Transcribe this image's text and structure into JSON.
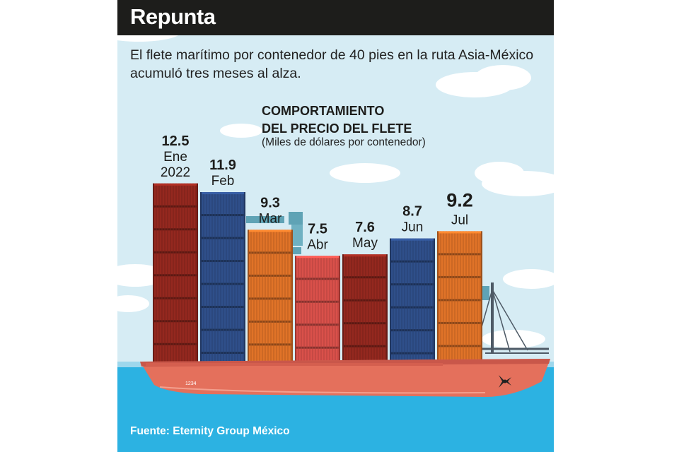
{
  "header": {
    "title": "Repunta"
  },
  "subtitle": "El flete marítimo por contenedor de 40 pies en la ruta Asia-México acumuló tres meses al alza.",
  "source": "Fuente: Eternity Group México",
  "ship": {
    "hull_number": "1234"
  },
  "colors": {
    "sky": "#d6ecf4",
    "sea": "#2cb2e2",
    "hull": "#e4705c",
    "header": "#1d1d1b"
  },
  "chart_data": {
    "type": "bar",
    "title": "COMPORTAMIENTO\nDEL PRECIO DEL FLETE",
    "subtitle": "(Miles de dólares por contenedor)",
    "categories": [
      "Ene\n2022",
      "Feb",
      "Mar",
      "Abr",
      "May",
      "Jun",
      "Jul"
    ],
    "values": [
      12.5,
      11.9,
      9.3,
      7.5,
      7.6,
      8.7,
      9.2
    ],
    "value_labels": [
      "12.5",
      "11.9",
      "9.3",
      "7.5",
      "7.6",
      "8.7",
      "9.2"
    ],
    "bar_colors": [
      "#94281f",
      "#2f4f8a",
      "#e07328",
      "#d9504a",
      "#94281f",
      "#2f4f8a",
      "#e07328"
    ],
    "highlight_index": 6,
    "grid": false,
    "legend": "none"
  }
}
